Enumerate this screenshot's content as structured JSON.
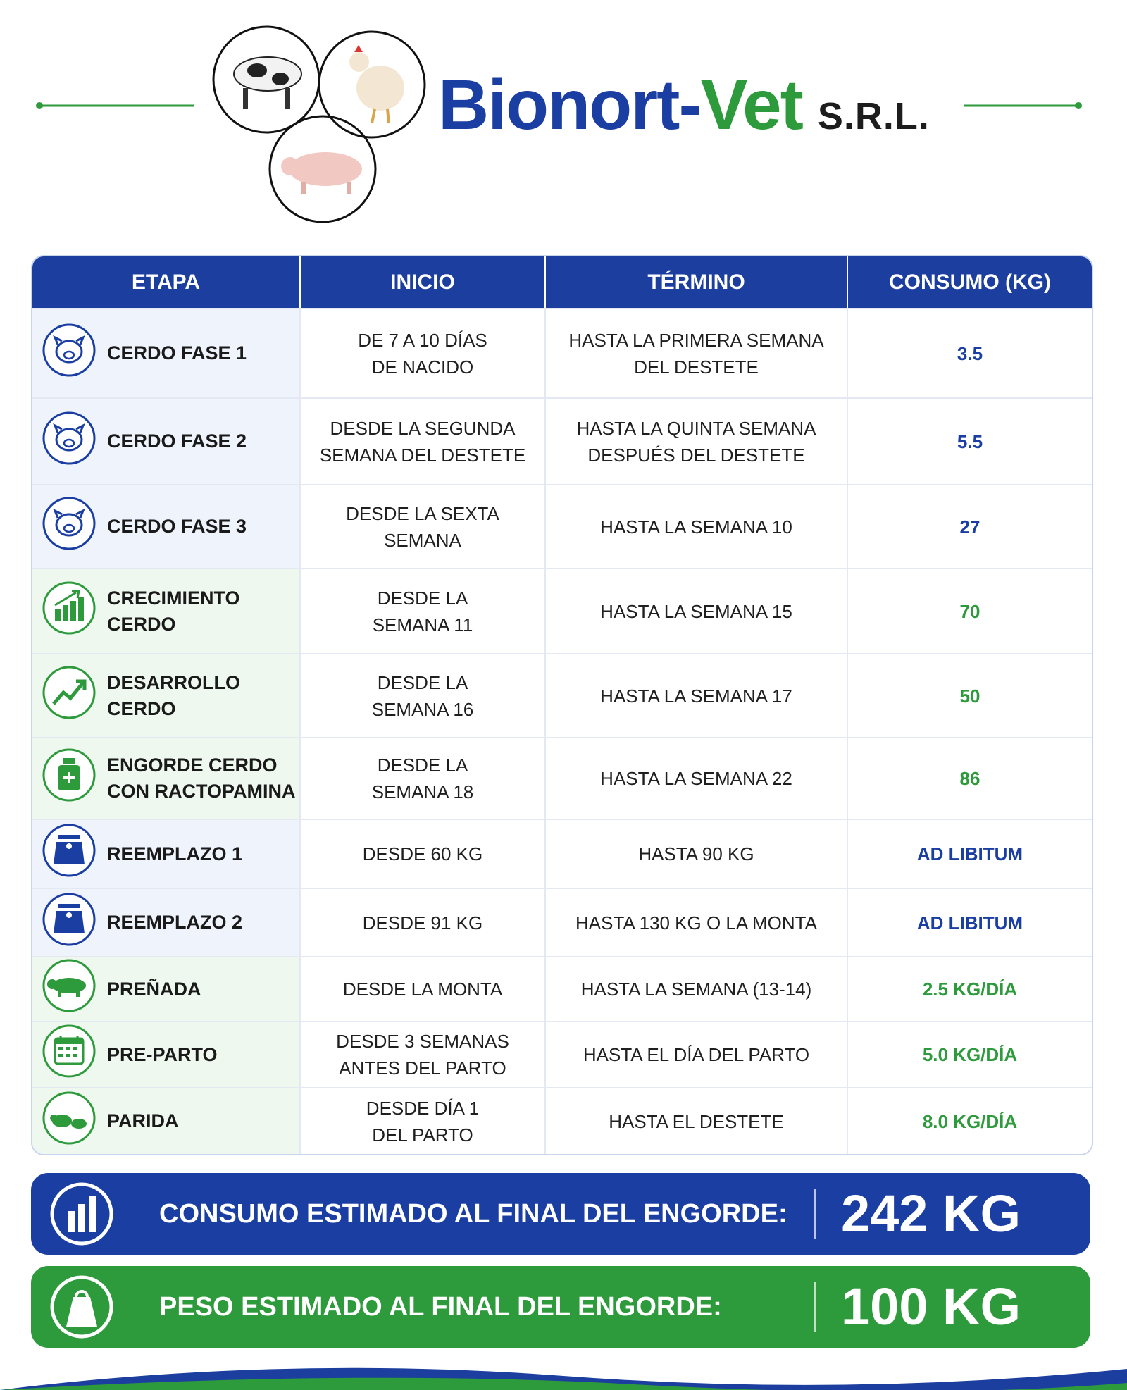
{
  "header": {
    "brand_1": "Bionort-",
    "brand_2": "Vet",
    "suffix": "S.R.L."
  },
  "table": {
    "columns": [
      "ETAPA",
      "INICIO",
      "TÉRMINO",
      "CONSUMO (KG)"
    ],
    "rows": [
      {
        "stage": [
          "CERDO FASE 1"
        ],
        "start": [
          "DE 7 A 10 DÍAS",
          "DE NACIDO"
        ],
        "end": [
          "HASTA LA PRIMERA SEMANA",
          "DEL DESTETE"
        ],
        "consumption": 3.5,
        "theme": "blue"
      },
      {
        "stage": [
          "CERDO FASE 2"
        ],
        "start": [
          "DESDE LA SEGUNDA",
          "SEMANA DEL DESTETE"
        ],
        "end": [
          "HASTA LA QUINTA SEMANA",
          "DESPUÉS DEL DESTETE"
        ],
        "consumption": 5.5,
        "theme": "blue"
      },
      {
        "stage": [
          "CERDO FASE 3"
        ],
        "start": [
          "DESDE LA SEXTA",
          "SEMANA"
        ],
        "end": [
          "HASTA LA SEMANA 10"
        ],
        "consumption": 27,
        "theme": "blue"
      },
      {
        "stage": [
          "CRECIMIENTO",
          "CERDO"
        ],
        "start": [
          "DESDE LA",
          "SEMANA 11"
        ],
        "end": [
          "HASTA LA SEMANA 15"
        ],
        "consumption": 70,
        "theme": "green"
      },
      {
        "stage": [
          "DESARROLLO",
          "CERDO"
        ],
        "start": [
          "DESDE LA",
          "SEMANA 16"
        ],
        "end": [
          "HASTA LA SEMANA 17"
        ],
        "consumption": 50,
        "theme": "green"
      },
      {
        "stage": [
          "ENGORDE CERDO",
          "CON RACTOPAMINA"
        ],
        "start": [
          "DESDE LA",
          "SEMANA 18"
        ],
        "end": [
          "HASTA LA SEMANA 22"
        ],
        "consumption": 86,
        "theme": "green"
      },
      {
        "stage": [
          "REEMPLAZO 1"
        ],
        "start": [
          "DESDE 60 KG"
        ],
        "end": [
          "HASTA 90 KG"
        ],
        "consumption": "AD LIBITUM",
        "theme": "blue"
      },
      {
        "stage": [
          "REEMPLAZO 2"
        ],
        "start": [
          "DESDE 91 KG"
        ],
        "end": [
          "HASTA 130 KG O LA MONTA"
        ],
        "consumption": "AD LIBITUM",
        "theme": "blue"
      },
      {
        "stage": [
          "PREÑADA"
        ],
        "start": [
          "DESDE LA MONTA"
        ],
        "end": [
          "HASTA LA SEMANA (13-14)"
        ],
        "consumption": "2.5 KG/DÍA",
        "theme": "green"
      },
      {
        "stage": [
          "PRE-PARTO"
        ],
        "start": [
          "DESDE 3 SEMANAS",
          "ANTES DEL PARTO"
        ],
        "end": [
          "HASTA EL DÍA DEL PARTO"
        ],
        "consumption": "5.0 KG/DÍA",
        "theme": "green"
      },
      {
        "stage": [
          "PARIDA"
        ],
        "start": [
          "DESDE DÍA 1",
          "DEL PARTO"
        ],
        "end": [
          "HASTA EL DESTETE"
        ],
        "consumption": "8.0 KG/DÍA",
        "theme": "green"
      }
    ]
  },
  "summary": [
    {
      "label": "CONSUMO ESTIMADO AL FINAL DEL ENGORDE:",
      "value": "242 KG",
      "theme": "blue"
    },
    {
      "label": "PESO ESTIMADO AL FINAL DEL ENGORDE:",
      "value": "100 KG",
      "theme": "green"
    }
  ]
}
